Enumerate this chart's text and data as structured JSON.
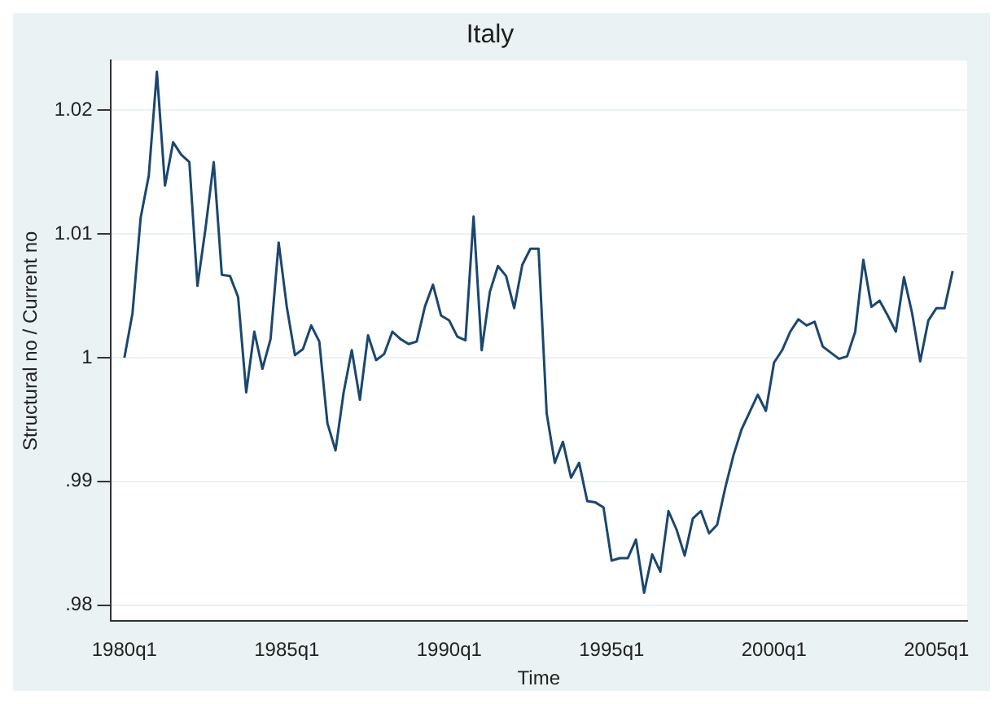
{
  "chart_data": {
    "type": "line",
    "title": "Italy",
    "xlabel": "Time",
    "ylabel": "Structural no / Current no",
    "categories": [
      "1980q1",
      null,
      null,
      null,
      null,
      null,
      null,
      null,
      null,
      null,
      null,
      null,
      null,
      null,
      null,
      null,
      null,
      null,
      null,
      null,
      "1985q1",
      null,
      null,
      null,
      null,
      null,
      null,
      null,
      null,
      null,
      null,
      null,
      null,
      null,
      null,
      null,
      null,
      null,
      null,
      null,
      "1990q1",
      null,
      null,
      null,
      null,
      null,
      null,
      null,
      null,
      null,
      null,
      null,
      null,
      null,
      null,
      null,
      null,
      null,
      null,
      null,
      "1995q1",
      null,
      null,
      null,
      null,
      null,
      null,
      null,
      null,
      null,
      null,
      null,
      null,
      null,
      null,
      null,
      null,
      null,
      null,
      null,
      "2000q1",
      null,
      null,
      null,
      null,
      null,
      null,
      null,
      null,
      null,
      null,
      null,
      null,
      null,
      null,
      null,
      null,
      null,
      null,
      null,
      "2005q1",
      null,
      null
    ],
    "series": [
      {
        "color": "#1a476f",
        "values": [
          1.0,
          1.0036,
          1.0113,
          1.0147,
          1.0231,
          1.0139,
          1.0174,
          1.0164,
          1.0158,
          1.0058,
          1.0105,
          1.0158,
          1.0067,
          1.0066,
          1.0049,
          0.9972,
          1.0021,
          0.9991,
          1.0015,
          1.0093,
          1.0041,
          1.0002,
          1.0007,
          1.0026,
          1.0013,
          0.9947,
          0.9925,
          0.9972,
          1.0006,
          0.9966,
          1.0018,
          0.9998,
          1.0003,
          1.0021,
          1.0015,
          1.0011,
          1.0013,
          1.0041,
          1.0059,
          1.0034,
          1.003,
          1.0017,
          1.0014,
          1.0114,
          1.0006,
          1.0053,
          1.0074,
          1.0066,
          1.004,
          1.0075,
          1.0088,
          1.0088,
          0.9955,
          0.9915,
          0.9932,
          0.9903,
          0.9915,
          0.9884,
          0.9883,
          0.9879,
          0.9836,
          0.9838,
          0.9838,
          0.9853,
          0.981,
          0.9841,
          0.9827,
          0.9876,
          0.9861,
          0.984,
          0.987,
          0.9876,
          0.9858,
          0.9865,
          0.9895,
          0.9921,
          0.9942,
          0.9956,
          0.997,
          0.9957,
          0.9996,
          1.0006,
          1.0021,
          1.0031,
          1.0026,
          1.0029,
          1.0009,
          1.0004,
          0.9999,
          1.0001,
          1.0021,
          1.0079,
          1.0041,
          1.0046,
          1.0034,
          1.0021,
          1.0065,
          1.0036,
          0.9997,
          1.003,
          1.004,
          1.004,
          1.007
        ]
      }
    ],
    "ylim": [
      0.9787,
      1.024
    ],
    "yticks": [
      {
        "value": 0.98,
        "label": ".98"
      },
      {
        "value": 0.99,
        "label": ".99"
      },
      1,
      1.01,
      1.02
    ],
    "grid": "y",
    "legend": false,
    "marker": "none",
    "line_style": "solid"
  }
}
